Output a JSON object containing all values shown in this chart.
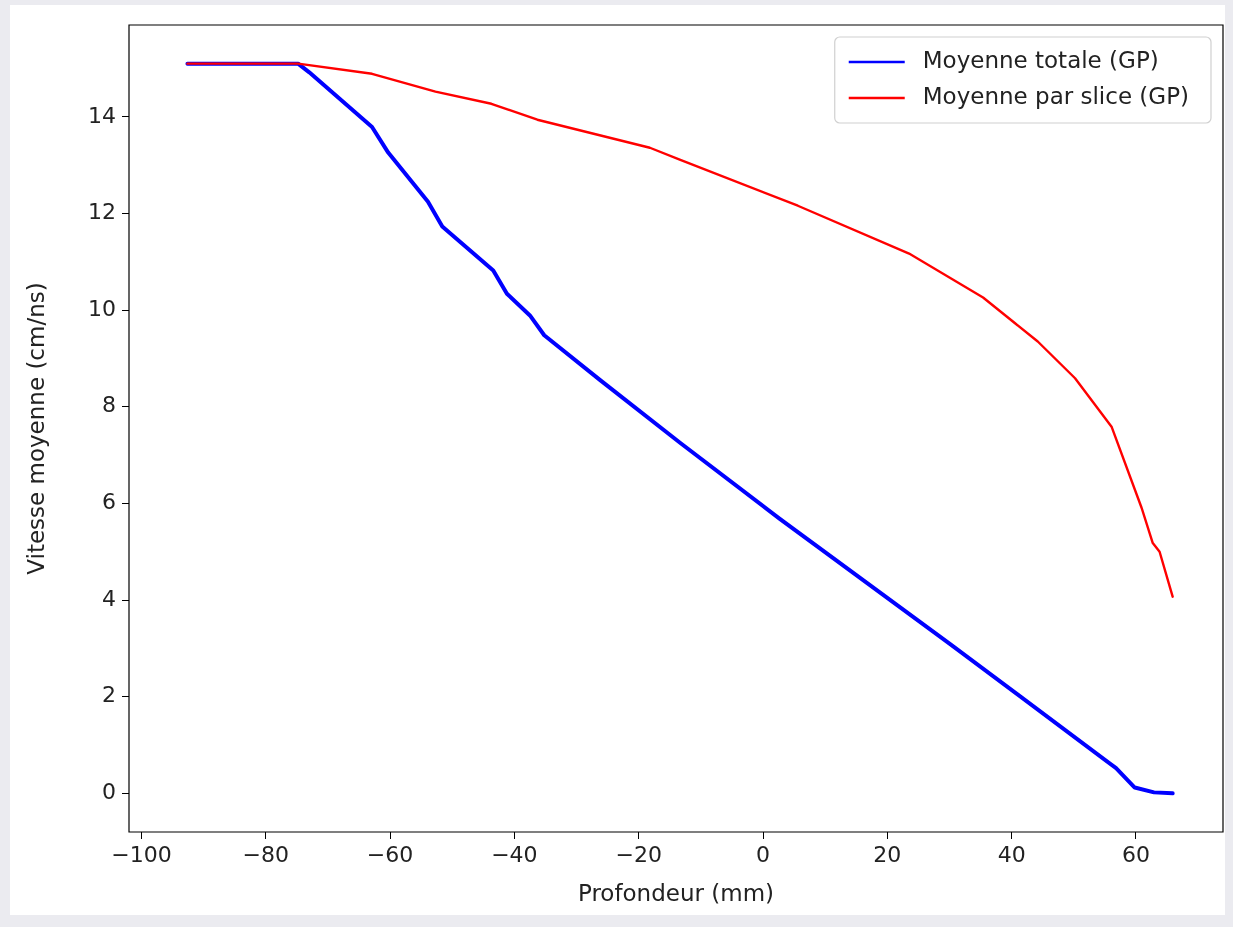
{
  "chart_data": {
    "type": "line",
    "xlabel": "Profondeur (mm)",
    "ylabel": "Vitesse moyenne (cm/ns)",
    "xlim": [
      -102,
      74
    ],
    "ylim": [
      -0.8,
      15.9
    ],
    "xticks": [
      {
        "value": -100,
        "label": "−100"
      },
      {
        "value": -80,
        "label": "−80"
      },
      {
        "value": -60,
        "label": "−60"
      },
      {
        "value": -40,
        "label": "−40"
      },
      {
        "value": -20,
        "label": "−20"
      },
      0,
      20,
      40,
      60
    ],
    "yticks": [
      0,
      2,
      4,
      6,
      8,
      10,
      12,
      14
    ],
    "grid": false,
    "legend": "top right",
    "marker": "none",
    "line_style": "solid",
    "series": [
      {
        "name": "Moyenne totale (GP)",
        "color": "#0000ff",
        "x": [
          -92.6,
          -74.8,
          -73.0,
          -62.9,
          -60.3,
          -53.9,
          -51.6,
          -43.4,
          -41.2,
          -37.5,
          -35.2,
          -26.2,
          -13.3,
          2.7,
          30,
          56.8,
          59.8,
          62.9,
          65.9
        ],
        "values": [
          15.1,
          15.1,
          14.92,
          13.79,
          13.26,
          12.24,
          11.73,
          10.82,
          10.34,
          9.89,
          9.48,
          8.55,
          7.25,
          5.68,
          3.1,
          0.52,
          0.12,
          0.02,
          0.0
        ]
      },
      {
        "name": "Moyenne par slice (GP)",
        "color": "#ff0000",
        "x": [
          -92.6,
          -74.8,
          -62.9,
          -52.7,
          -43.7,
          -36.3,
          -18.2,
          -13.3,
          5.6,
          23.5,
          35.4,
          44.2,
          50.2,
          56.1,
          60.9,
          62.7,
          63.8,
          65.9
        ],
        "values": [
          15.1,
          15.1,
          14.89,
          14.52,
          14.27,
          13.94,
          13.36,
          13.11,
          12.16,
          11.17,
          10.26,
          9.35,
          8.59,
          7.58,
          5.91,
          5.18,
          5.0,
          4.07
        ]
      }
    ]
  }
}
